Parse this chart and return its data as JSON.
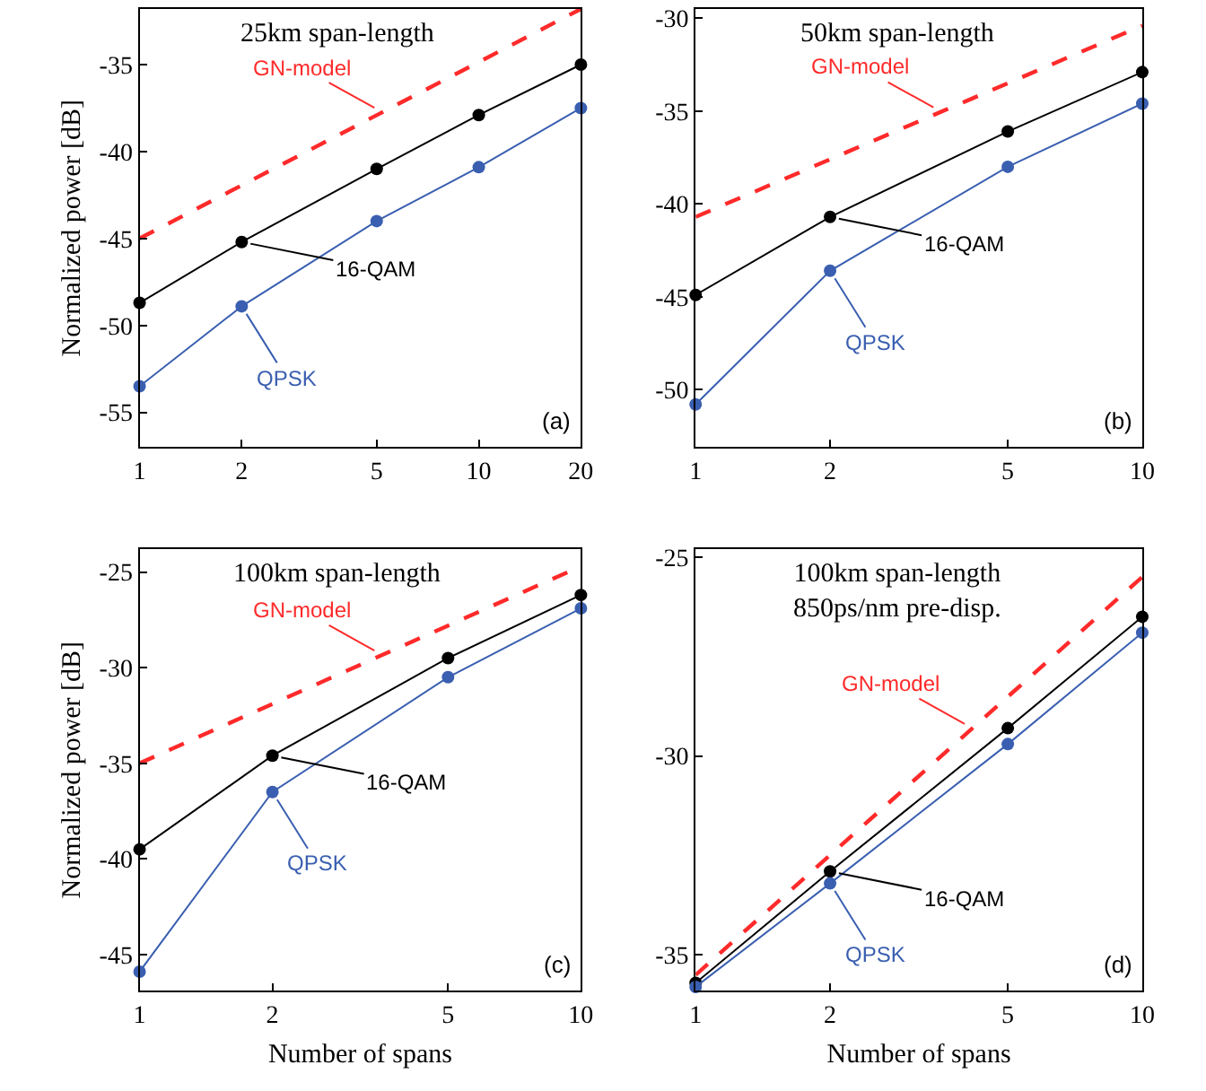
{
  "chart_data": [
    {
      "type": "line",
      "title": "25km span-length",
      "ylabel": "Normalized power [dB]",
      "log": "x",
      "x": [
        1,
        2,
        5,
        10,
        20
      ],
      "xlim": [
        1,
        20
      ],
      "xticks": [
        1,
        2,
        5,
        10,
        20
      ],
      "ylim": [
        -57,
        -31.8
      ],
      "yticks": [
        -55,
        -50,
        -45,
        -40,
        -35
      ],
      "annotations": [
        "(a)"
      ],
      "series": [
        {
          "name": "GN-model",
          "color": "#ff2a2a",
          "x": [
            1,
            20
          ],
          "values": [
            -45.0,
            -31.8
          ],
          "line_style": "dashed",
          "marker": "none"
        },
        {
          "name": "16-QAM",
          "color": "#000000",
          "values": [
            -48.7,
            -45.2,
            -41.0,
            -37.9,
            -35.0
          ],
          "line_style": "solid",
          "marker": "circle"
        },
        {
          "name": "QPSK",
          "color": "#3a5fb0",
          "values": [
            -53.5,
            -48.9,
            -44.0,
            -40.9,
            -37.5
          ],
          "line_style": "solid",
          "marker": "circle"
        }
      ]
    },
    {
      "type": "line",
      "title": "50km span-length",
      "log": "x",
      "x": [
        1,
        2,
        5,
        10
      ],
      "xlim": [
        1,
        10
      ],
      "xticks": [
        1,
        2,
        5,
        10
      ],
      "ylim": [
        -53.1,
        -29.5
      ],
      "yticks": [
        -50,
        -45,
        -40,
        -35,
        -30
      ],
      "annotations": [
        "(b)"
      ],
      "series": [
        {
          "name": "GN-model",
          "color": "#ff2a2a",
          "x": [
            1,
            10
          ],
          "values": [
            -40.7,
            -30.4
          ],
          "line_style": "dashed",
          "marker": "none"
        },
        {
          "name": "16-QAM",
          "color": "#000000",
          "values": [
            -44.9,
            -40.7,
            -36.1,
            -32.9
          ],
          "line_style": "solid",
          "marker": "circle"
        },
        {
          "name": "QPSK",
          "color": "#3a5fb0",
          "values": [
            -50.8,
            -43.6,
            -38.0,
            -34.6
          ],
          "line_style": "solid",
          "marker": "circle"
        }
      ]
    },
    {
      "type": "line",
      "title": "100km span-length",
      "xlabel": "Number of spans",
      "ylabel": "Normalized power [dB]",
      "log": "x",
      "x": [
        1,
        2,
        5,
        10
      ],
      "xlim": [
        1,
        10
      ],
      "xticks": [
        1,
        2,
        5,
        10
      ],
      "ylim": [
        -46.9,
        -23.8
      ],
      "yticks": [
        -45,
        -40,
        -35,
        -30,
        -25
      ],
      "annotations": [
        "(c)"
      ],
      "series": [
        {
          "name": "GN-model",
          "color": "#ff2a2a",
          "x": [
            1,
            10
          ],
          "values": [
            -35.0,
            -24.7
          ],
          "line_style": "dashed",
          "marker": "none"
        },
        {
          "name": "16-QAM",
          "color": "#000000",
          "values": [
            -39.5,
            -34.6,
            -29.5,
            -26.2
          ],
          "line_style": "solid",
          "marker": "circle"
        },
        {
          "name": "QPSK",
          "color": "#3a5fb0",
          "values": [
            -45.9,
            -36.5,
            -30.5,
            -26.9
          ],
          "line_style": "solid",
          "marker": "circle"
        }
      ]
    },
    {
      "type": "line",
      "title": "100km span-length\n850ps/nm pre-disp.",
      "xlabel": "Number of spans",
      "log": "x",
      "x": [
        1,
        2,
        5,
        10
      ],
      "xlim": [
        1,
        10
      ],
      "xticks": [
        1,
        2,
        5,
        10
      ],
      "ylim": [
        -35.9,
        -24.8
      ],
      "yticks": [
        -35,
        -30,
        -25
      ],
      "annotations": [
        "(d)"
      ],
      "series": [
        {
          "name": "GN-model",
          "color": "#ff2a2a",
          "x": [
            1,
            10
          ],
          "values": [
            -35.5,
            -25.5
          ],
          "line_style": "dashed",
          "marker": "none"
        },
        {
          "name": "16-QAM",
          "color": "#000000",
          "values": [
            -35.7,
            -32.9,
            -29.3,
            -26.5
          ],
          "line_style": "solid",
          "marker": "circle"
        },
        {
          "name": "QPSK",
          "color": "#3a5fb0",
          "values": [
            -35.8,
            -33.2,
            -29.7,
            -26.9
          ],
          "line_style": "solid",
          "marker": "circle"
        }
      ]
    }
  ]
}
